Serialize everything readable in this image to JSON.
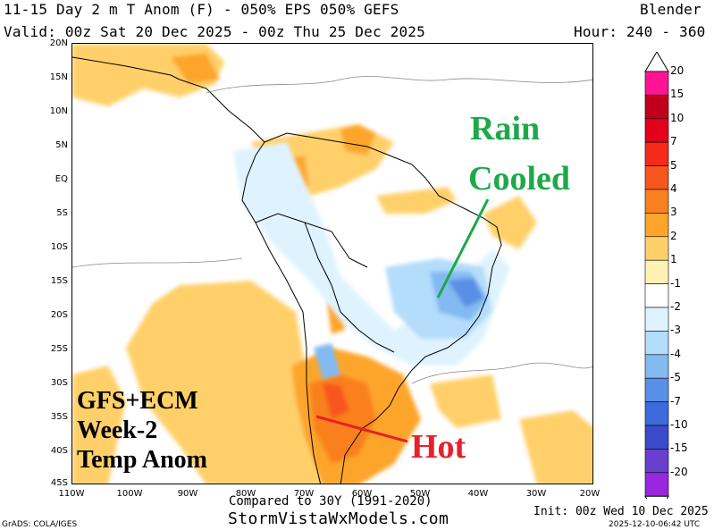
{
  "header": {
    "title": "11-15 Day 2 m T Anom (F) - 050% EPS 050% GEFS",
    "model": "Blender",
    "valid": "Valid: 00z Sat 20 Dec 2025 - 00z Thu 25 Dec 2025",
    "hour": "Hour: 240 - 360"
  },
  "lat_labels": [
    "20N",
    "15N",
    "10N",
    "5N",
    "EQ",
    "5S",
    "10S",
    "15S",
    "20S",
    "25S",
    "30S",
    "35S",
    "40S",
    "45S"
  ],
  "lon_labels": [
    "110W",
    "100W",
    "90W",
    "80W",
    "70W",
    "60W",
    "50W",
    "40W",
    "30W",
    "20W"
  ],
  "annotations": {
    "rain": "Rain",
    "cooled": "Cooled",
    "hot": "Hot",
    "box_line1": "GFS+ECM",
    "box_line2": "Week-2",
    "box_line3": "Temp Anom"
  },
  "colorbar": {
    "labels": [
      "20",
      "15",
      "10",
      "7",
      "5",
      "4",
      "3",
      "2",
      "1",
      "-1",
      "-2",
      "-3",
      "-4",
      "-5",
      "-7",
      "-10",
      "-15",
      "-20"
    ],
    "colors": [
      "#ff1493",
      "#c0001a",
      "#e3001c",
      "#f52a1a",
      "#f7561e",
      "#f9801f",
      "#fda52a",
      "#ffd06a",
      "#fff1b3",
      "#ffffff",
      "#dff3ff",
      "#b4dcfb",
      "#82baf1",
      "#5a8fe6",
      "#3d6bd9",
      "#3b4ac9",
      "#6a3fcf",
      "#9a26e0"
    ]
  },
  "footer": {
    "compared": "Compared to 30Y (1991-2020)",
    "site": "StormVistaWxModels.com",
    "init": "Init: 00z Wed 10 Dec 2025",
    "stamp": "2025-12-10-06:42 UTC",
    "grads": "GrADS: COLA/IGES"
  },
  "colors": {
    "green": "#1ea84a",
    "red": "#e8202a",
    "warm": "#ffd06a",
    "cool": "#82baf1"
  }
}
